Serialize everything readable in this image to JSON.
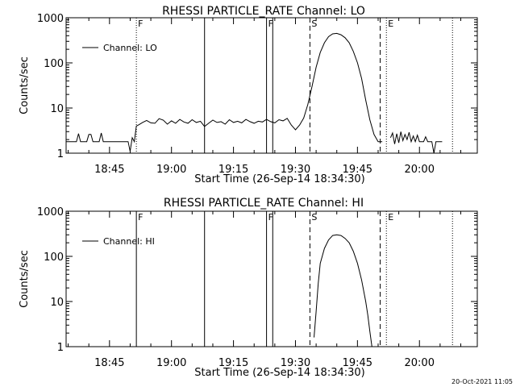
{
  "footer": {
    "date": "20-Oct-2021 11:05"
  },
  "chart_data": [
    {
      "type": "line",
      "title": "RHESSI PARTICLE_RATE Channel: LO",
      "xlabel": "Start Time (26-Sep-14 18:34:30)",
      "ylabel": "Counts/sec",
      "y_scale": "log",
      "ylim": [
        1,
        1000
      ],
      "y_ticks": [
        1,
        10,
        100,
        1000
      ],
      "y_tick_labels": [
        "1",
        "10",
        "100",
        "1000"
      ],
      "xlim": [
        "18:34:30",
        "20:14:00"
      ],
      "x_ticks": [
        "18:45",
        "19:00",
        "19:15",
        "19:30",
        "19:45",
        "20:00"
      ],
      "legend": {
        "entries": [
          "Channel: LO"
        ],
        "position": "top-left"
      },
      "markers": [
        {
          "label": "F",
          "time": "18:51:30",
          "style": "dotted"
        },
        {
          "label": "",
          "time": "19:08:00",
          "style": "solid"
        },
        {
          "label": "F",
          "time": "19:23:00",
          "style": "solid"
        },
        {
          "label": "",
          "time": "19:24:30",
          "style": "solid"
        },
        {
          "label": "S",
          "time": "19:33:30",
          "style": "dashed"
        },
        {
          "label": "",
          "time": "19:50:30",
          "style": "dashed"
        },
        {
          "label": "E",
          "time": "19:52:00",
          "style": "dotted"
        },
        {
          "label": "",
          "time": "20:08:00",
          "style": "dotted"
        }
      ],
      "series": [
        {
          "segments": [
            [
              [
                "18:34:30",
                1.8
              ],
              [
                "18:37:00",
                1.8
              ],
              [
                "18:37:30",
                2.7
              ],
              [
                "18:38:00",
                1.8
              ],
              [
                "18:39:30",
                1.8
              ],
              [
                "18:40:00",
                2.6
              ],
              [
                "18:40:30",
                2.6
              ],
              [
                "18:41:00",
                1.8
              ],
              [
                "18:42:30",
                1.8
              ],
              [
                "18:43:00",
                2.8
              ],
              [
                "18:43:30",
                1.8
              ],
              [
                "18:48:00",
                1.8
              ],
              [
                "18:49:30",
                1.8
              ],
              [
                "18:50:00",
                1.1
              ],
              [
                "18:50:30",
                2.2
              ],
              [
                "18:51:00",
                1.8
              ],
              [
                "18:51:30",
                4.0
              ],
              [
                "18:52:00",
                4.2
              ],
              [
                "18:53:00",
                4.8
              ],
              [
                "18:54:00",
                5.3
              ],
              [
                "18:55:00",
                4.7
              ],
              [
                "18:56:00",
                4.6
              ],
              [
                "18:57:00",
                5.8
              ],
              [
                "18:58:00",
                5.4
              ],
              [
                "18:59:00",
                4.4
              ],
              [
                "19:00:00",
                5.2
              ],
              [
                "19:01:00",
                4.6
              ],
              [
                "19:02:00",
                5.6
              ],
              [
                "19:03:00",
                4.9
              ],
              [
                "19:04:00",
                4.6
              ],
              [
                "19:05:00",
                5.5
              ],
              [
                "19:06:00",
                4.8
              ],
              [
                "19:07:00",
                5.1
              ],
              [
                "19:08:00",
                3.9
              ],
              [
                "19:09:00",
                4.6
              ],
              [
                "19:10:00",
                5.4
              ],
              [
                "19:11:00",
                4.8
              ],
              [
                "19:12:00",
                5.0
              ],
              [
                "19:13:00",
                4.4
              ],
              [
                "19:14:00",
                5.5
              ],
              [
                "19:15:00",
                4.8
              ],
              [
                "19:16:00",
                5.1
              ],
              [
                "19:17:00",
                4.7
              ],
              [
                "19:18:00",
                5.6
              ],
              [
                "19:19:00",
                5.0
              ],
              [
                "19:20:00",
                4.6
              ],
              [
                "19:21:00",
                5.1
              ],
              [
                "19:22:00",
                4.9
              ],
              [
                "19:23:00",
                5.6
              ],
              [
                "19:24:00",
                5.0
              ],
              [
                "19:25:00",
                4.7
              ],
              [
                "19:26:00",
                5.5
              ],
              [
                "19:27:00",
                5.2
              ],
              [
                "19:28:00",
                5.9
              ],
              [
                "19:29:00",
                4.2
              ],
              [
                "19:30:00",
                3.3
              ],
              [
                "19:31:00",
                4.2
              ],
              [
                "19:32:00",
                6.0
              ],
              [
                "19:33:00",
                12
              ],
              [
                "19:34:00",
                30
              ],
              [
                "19:35:00",
                80
              ],
              [
                "19:36:00",
                170
              ],
              [
                "19:37:00",
                280
              ],
              [
                "19:38:00",
                380
              ],
              [
                "19:39:00",
                440
              ],
              [
                "19:40:00",
                450
              ],
              [
                "19:41:00",
                420
              ],
              [
                "19:42:00",
                360
              ],
              [
                "19:43:00",
                280
              ],
              [
                "19:44:00",
                180
              ],
              [
                "19:45:00",
                100
              ],
              [
                "19:46:00",
                45
              ],
              [
                "19:47:00",
                15
              ],
              [
                "19:48:00",
                5.5
              ],
              [
                "19:49:00",
                2.6
              ],
              [
                "19:50:00",
                1.8
              ],
              [
                "19:51:00",
                1.8
              ]
            ],
            [
              [
                "19:53:00",
                2.2
              ],
              [
                "19:53:30",
                2.8
              ],
              [
                "19:54:00",
                1.6
              ],
              [
                "19:54:30",
                2.7
              ],
              [
                "19:55:00",
                1.7
              ],
              [
                "19:55:30",
                3.0
              ],
              [
                "19:56:00",
                1.9
              ],
              [
                "19:56:30",
                2.6
              ],
              [
                "19:57:00",
                2.0
              ],
              [
                "19:57:30",
                2.9
              ],
              [
                "19:58:00",
                1.8
              ],
              [
                "19:58:30",
                2.4
              ],
              [
                "19:59:00",
                1.8
              ],
              [
                "19:59:30",
                2.5
              ],
              [
                "20:00:00",
                1.8
              ],
              [
                "20:01:00",
                1.8
              ],
              [
                "20:01:30",
                2.3
              ],
              [
                "20:02:00",
                1.8
              ],
              [
                "20:03:00",
                1.8
              ],
              [
                "20:03:30",
                1.0
              ],
              [
                "20:04:00",
                1.8
              ],
              [
                "20:05:30",
                1.8
              ]
            ]
          ]
        }
      ]
    },
    {
      "type": "line",
      "title": "RHESSI PARTICLE_RATE Channel: HI",
      "xlabel": "Start Time (26-Sep-14 18:34:30)",
      "ylabel": "Counts/sec",
      "y_scale": "log",
      "ylim": [
        1,
        1000
      ],
      "y_ticks": [
        1,
        10,
        100,
        1000
      ],
      "y_tick_labels": [
        "1",
        "10",
        "100",
        "1000"
      ],
      "xlim": [
        "18:34:30",
        "20:14:00"
      ],
      "x_ticks": [
        "18:45",
        "19:00",
        "19:15",
        "19:30",
        "19:45",
        "20:00"
      ],
      "legend": {
        "entries": [
          "Channel: HI"
        ],
        "position": "top-left"
      },
      "markers": [
        {
          "label": "F",
          "time": "18:51:30",
          "style": "solid"
        },
        {
          "label": "",
          "time": "19:08:00",
          "style": "solid"
        },
        {
          "label": "F",
          "time": "19:23:00",
          "style": "solid"
        },
        {
          "label": "",
          "time": "19:24:30",
          "style": "solid"
        },
        {
          "label": "S",
          "time": "19:33:30",
          "style": "dashed"
        },
        {
          "label": "",
          "time": "19:50:30",
          "style": "dashed"
        },
        {
          "label": "E",
          "time": "19:52:00",
          "style": "dotted"
        },
        {
          "label": "",
          "time": "20:08:00",
          "style": "dotted"
        }
      ],
      "series": [
        {
          "segments": [
            [
              [
                "19:34:30",
                1.6
              ],
              [
                "19:35:00",
                6
              ],
              [
                "19:35:30",
                25
              ],
              [
                "19:36:00",
                70
              ],
              [
                "19:37:00",
                150
              ],
              [
                "19:38:00",
                230
              ],
              [
                "19:39:00",
                290
              ],
              [
                "19:40:00",
                300
              ],
              [
                "19:41:00",
                290
              ],
              [
                "19:42:00",
                250
              ],
              [
                "19:43:00",
                200
              ],
              [
                "19:44:00",
                130
              ],
              [
                "19:45:00",
                70
              ],
              [
                "19:46:00",
                30
              ],
              [
                "19:47:00",
                10
              ],
              [
                "19:47:30",
                5
              ],
              [
                "19:48:00",
                2.2
              ],
              [
                "19:48:30",
                1.0
              ]
            ]
          ]
        }
      ]
    }
  ]
}
